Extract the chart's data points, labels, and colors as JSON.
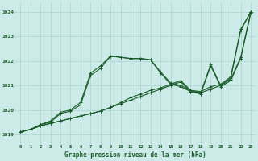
{
  "background_color": "#cceae7",
  "grid_color": "#aad4cf",
  "line_color": "#1a5c2a",
  "xlabel": "Graphe pression niveau de la mer (hPa)",
  "ylabel_ticks": [
    1019,
    1020,
    1021,
    1022,
    1023,
    1024
  ],
  "xlim": [
    -0.5,
    23.5
  ],
  "ylim": [
    1018.6,
    1024.4
  ],
  "series1_x": [
    0,
    1,
    2,
    3,
    4,
    5,
    6,
    7,
    8,
    9,
    10,
    11,
    12,
    13,
    14,
    15,
    16,
    17,
    18,
    19,
    20,
    21,
    22,
    23
  ],
  "series1_y": [
    1019.1,
    1019.2,
    1019.35,
    1019.45,
    1019.55,
    1019.65,
    1019.75,
    1019.85,
    1019.95,
    1020.1,
    1020.25,
    1020.4,
    1020.55,
    1020.7,
    1020.85,
    1021.0,
    1021.15,
    1020.75,
    1020.7,
    1020.85,
    1021.0,
    1021.3,
    1023.25,
    1024.0
  ],
  "series2_x": [
    0,
    1,
    2,
    3,
    4,
    5,
    6,
    7,
    8,
    9,
    10,
    11,
    12,
    13,
    14,
    15,
    16,
    17,
    18,
    19,
    20,
    21,
    22,
    23
  ],
  "series2_y": [
    1019.1,
    1019.2,
    1019.35,
    1019.45,
    1019.55,
    1019.65,
    1019.75,
    1019.85,
    1019.95,
    1020.1,
    1020.3,
    1020.5,
    1020.65,
    1020.8,
    1020.9,
    1021.05,
    1021.2,
    1020.8,
    1020.75,
    1020.95,
    1021.05,
    1021.35,
    1023.3,
    1024.0
  ],
  "series3_x": [
    0,
    1,
    2,
    3,
    4,
    5,
    6,
    7,
    8,
    9,
    10,
    11,
    12,
    13,
    14,
    15,
    16,
    17,
    18,
    19,
    20,
    21,
    22,
    23
  ],
  "series3_y": [
    1019.1,
    1019.2,
    1019.4,
    1019.55,
    1019.9,
    1020.0,
    1020.3,
    1021.5,
    1021.8,
    1022.2,
    1022.15,
    1022.1,
    1022.1,
    1022.05,
    1021.55,
    1021.1,
    1021.0,
    1020.8,
    1020.7,
    1021.85,
    1021.0,
    1021.25,
    1022.15,
    1024.0
  ],
  "series4_x": [
    0,
    1,
    2,
    3,
    4,
    5,
    6,
    7,
    8,
    9,
    10,
    11,
    12,
    13,
    14,
    15,
    16,
    17,
    18,
    19,
    20,
    21,
    22,
    23
  ],
  "series4_y": [
    1019.1,
    1019.2,
    1019.4,
    1019.5,
    1019.85,
    1019.95,
    1020.2,
    1021.4,
    1021.7,
    1022.2,
    1022.15,
    1022.1,
    1022.1,
    1022.05,
    1021.5,
    1021.05,
    1020.95,
    1020.75,
    1020.65,
    1021.8,
    1020.95,
    1021.2,
    1022.1,
    1023.95
  ]
}
